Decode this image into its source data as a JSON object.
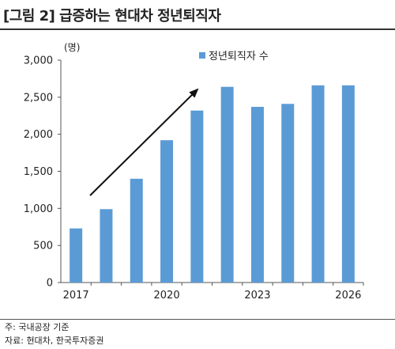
{
  "title": "[그림 2] 급증하는 현대차 정년퇴직자",
  "notes": {
    "note": "주: 국내공장 기준",
    "source": "자료: 현대차, 한국투자증권"
  },
  "colors": {
    "bar": "#5B9BD5",
    "axis": "#555555",
    "arrow": "#111111"
  },
  "chart_data": {
    "type": "bar",
    "unit_label": "(명)",
    "categories": [
      "2017",
      "2018",
      "2019",
      "2020",
      "2021",
      "2022",
      "2023",
      "2024",
      "2025",
      "2026"
    ],
    "x_tick_labels": [
      "2017",
      "",
      "",
      "2020",
      "",
      "",
      "2023",
      "",
      "",
      "2026"
    ],
    "series": [
      {
        "name": "정년퇴직자 수",
        "values": [
          730,
          990,
          1400,
          1920,
          2320,
          2640,
          2370,
          2410,
          2660,
          2660
        ]
      }
    ],
    "ylim": [
      0,
      3000
    ],
    "y_ticks": [
      0,
      500,
      1000,
      1500,
      2000,
      2500,
      3000
    ],
    "y_tick_labels": [
      "0",
      "500",
      "1,000",
      "1,500",
      "2,000",
      "2,500",
      "3,000"
    ],
    "legend_position": "top",
    "grid": false,
    "annotation": "upward trend arrow"
  }
}
